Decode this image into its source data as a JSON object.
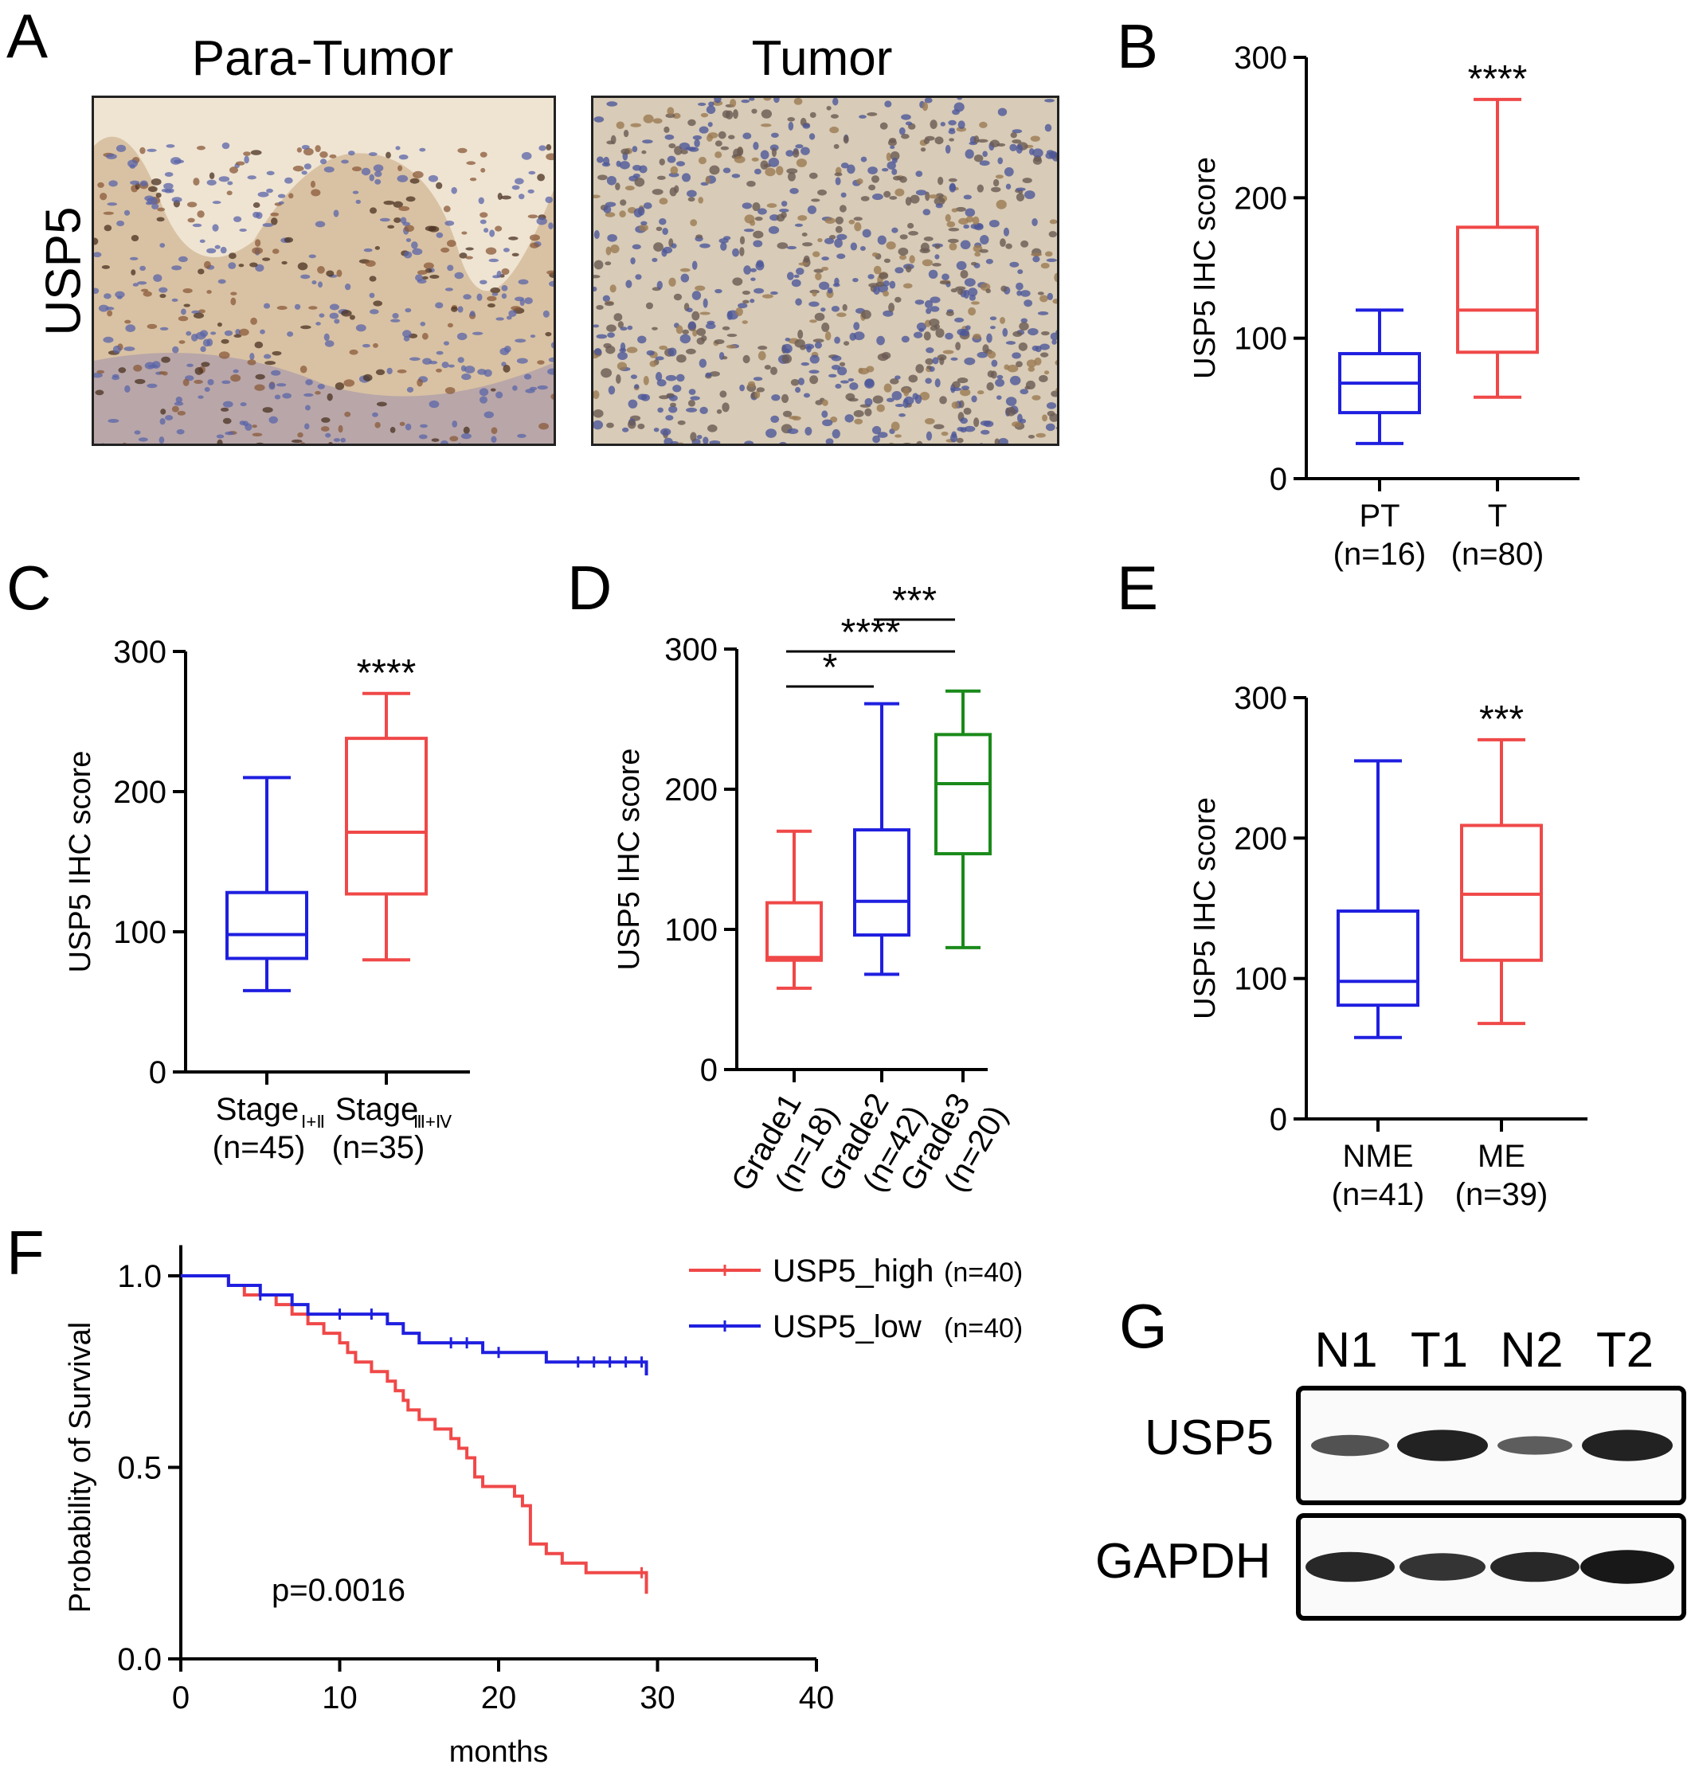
{
  "panels": {
    "A": {
      "letter": "A",
      "row_label": "USP5",
      "images": [
        {
          "title": "Para-Tumor"
        },
        {
          "title": "Tumor"
        }
      ]
    },
    "B": {
      "letter": "B",
      "ylabel": "USP5 IHC score",
      "yticks": [
        "0",
        "100",
        "200",
        "300"
      ],
      "significance": "****",
      "groups": [
        {
          "label": "PT",
          "n": "(n=16)"
        },
        {
          "label": "T",
          "n": "(n=80)"
        }
      ]
    },
    "C": {
      "letter": "C",
      "ylabel": "USP5 IHC score",
      "yticks": [
        "0",
        "100",
        "200",
        "300"
      ],
      "significance": "****",
      "groups": [
        {
          "label": "Stage",
          "sub": "Ⅰ+Ⅱ",
          "n": "(n=45)"
        },
        {
          "label": "Stage",
          "sub": "Ⅲ+Ⅳ",
          "n": "(n=35)"
        }
      ]
    },
    "D": {
      "letter": "D",
      "ylabel": "USP5 IHC score",
      "yticks": [
        "0",
        "100",
        "200",
        "300"
      ],
      "groups": [
        {
          "label": "Grade1",
          "n": "(n=18)"
        },
        {
          "label": "Grade2",
          "n": "(n=42)"
        },
        {
          "label": "Grade3",
          "n": "(n=20)"
        }
      ],
      "comparisons": [
        {
          "from": 0,
          "to": 1,
          "stars": "*"
        },
        {
          "from": 0,
          "to": 2,
          "stars": "****"
        },
        {
          "from": 1,
          "to": 2,
          "stars": "***"
        }
      ]
    },
    "E": {
      "letter": "E",
      "ylabel": "USP5 IHC score",
      "yticks": [
        "0",
        "100",
        "200",
        "300"
      ],
      "significance": "***",
      "groups": [
        {
          "label": "NME",
          "n": "(n=41)"
        },
        {
          "label": "ME",
          "n": "(n=39)"
        }
      ]
    },
    "F": {
      "letter": "F",
      "ylabel": "Probability of Survival",
      "xlabel": "months",
      "xticks": [
        "0",
        "10",
        "20",
        "30",
        "40"
      ],
      "yticks": [
        "0.0",
        "0.5",
        "1.0"
      ],
      "pvalue": "p=0.0016",
      "legend": [
        {
          "name": "USP5_high",
          "n": "(n=40)"
        },
        {
          "name": "USP5_low",
          "n": "(n=40)"
        }
      ]
    },
    "G": {
      "letter": "G",
      "lanes": [
        "N1",
        "T1",
        "N2",
        "T2"
      ],
      "rows": [
        "USP5",
        "GAPDH"
      ]
    }
  },
  "colors": {
    "blue": "#1f1fe0",
    "red": "#f04848",
    "green": "#1a8a1a",
    "axis": "#000000"
  },
  "chart_data": [
    {
      "panel": "B",
      "type": "box",
      "ylabel": "USP5 IHC score",
      "ylim": [
        0,
        300
      ],
      "categories": [
        "PT",
        "T"
      ],
      "series": [
        {
          "category": "PT",
          "color": "blue",
          "min": 25,
          "q1": 47,
          "median": 68,
          "q3": 89,
          "max": 120
        },
        {
          "category": "T",
          "color": "red",
          "min": 58,
          "q1": 90,
          "median": 120,
          "q3": 179,
          "max": 270
        }
      ]
    },
    {
      "panel": "C",
      "type": "box",
      "ylabel": "USP5 IHC score",
      "ylim": [
        0,
        300
      ],
      "categories": [
        "Stage Ⅰ+Ⅱ",
        "Stage Ⅲ+Ⅳ"
      ],
      "series": [
        {
          "category": "Stage Ⅰ+Ⅱ",
          "color": "blue",
          "min": 58,
          "q1": 81,
          "median": 98,
          "q3": 128,
          "max": 210
        },
        {
          "category": "Stage Ⅲ+Ⅳ",
          "color": "red",
          "min": 80,
          "q1": 127,
          "median": 171,
          "q3": 238,
          "max": 270
        }
      ]
    },
    {
      "panel": "D",
      "type": "box",
      "ylabel": "USP5 IHC score",
      "ylim": [
        0,
        300
      ],
      "categories": [
        "Grade1",
        "Grade2",
        "Grade3"
      ],
      "series": [
        {
          "category": "Grade1",
          "color": "red",
          "min": 58,
          "q1": 78,
          "median": 80,
          "q3": 119,
          "max": 170
        },
        {
          "category": "Grade2",
          "color": "blue",
          "min": 68,
          "q1": 96,
          "median": 120,
          "q3": 171,
          "max": 261
        },
        {
          "category": "Grade3",
          "color": "green",
          "min": 87,
          "q1": 154,
          "median": 204,
          "q3": 239,
          "max": 270
        }
      ]
    },
    {
      "panel": "E",
      "type": "box",
      "ylabel": "USP5 IHC score",
      "ylim": [
        0,
        300
      ],
      "categories": [
        "NME",
        "ME"
      ],
      "series": [
        {
          "category": "NME",
          "color": "blue",
          "min": 58,
          "q1": 81,
          "median": 98,
          "q3": 148,
          "max": 255
        },
        {
          "category": "ME",
          "color": "red",
          "min": 68,
          "q1": 113,
          "median": 160,
          "q3": 209,
          "max": 270
        }
      ]
    },
    {
      "panel": "F",
      "type": "line",
      "subtype": "kaplan-meier",
      "xlabel": "months",
      "ylabel": "Probability of Survival",
      "xlim": [
        0,
        40
      ],
      "ylim": [
        0,
        1
      ],
      "series": [
        {
          "name": "USP5_high",
          "color": "red",
          "x": [
            0,
            3,
            4,
            6,
            7,
            8,
            9,
            10,
            10.5,
            11,
            12,
            13,
            13.5,
            14,
            14.3,
            15,
            16,
            17,
            17.5,
            18,
            18.5,
            19,
            21,
            21.5,
            22,
            23,
            24,
            25.5,
            29.3
          ],
          "y": [
            1.0,
            0.975,
            0.95,
            0.925,
            0.9,
            0.875,
            0.85,
            0.825,
            0.8,
            0.775,
            0.75,
            0.725,
            0.7,
            0.675,
            0.65,
            0.625,
            0.6,
            0.575,
            0.55,
            0.525,
            0.475,
            0.45,
            0.425,
            0.4,
            0.3,
            0.275,
            0.25,
            0.225,
            0.17
          ],
          "censored_x": [
            29.0
          ]
        },
        {
          "name": "USP5_low",
          "color": "blue",
          "x": [
            0,
            3,
            5,
            7,
            8,
            13,
            14,
            15,
            19,
            23,
            29.3
          ],
          "y": [
            1.0,
            0.975,
            0.95,
            0.925,
            0.9,
            0.875,
            0.85,
            0.825,
            0.8,
            0.775,
            0.74
          ],
          "censored_x": [
            5,
            10,
            12,
            17,
            18,
            20,
            25,
            26,
            27,
            28,
            29
          ]
        }
      ]
    },
    {
      "panel": "G",
      "type": "table",
      "columns": [
        "N1",
        "T1",
        "N2",
        "T2"
      ],
      "rows": [
        {
          "name": "USP5",
          "relative_intensity": [
            0.45,
            0.85,
            0.35,
            0.85
          ]
        },
        {
          "name": "GAPDH",
          "relative_intensity": [
            0.8,
            0.7,
            0.8,
            0.95
          ]
        }
      ]
    }
  ]
}
